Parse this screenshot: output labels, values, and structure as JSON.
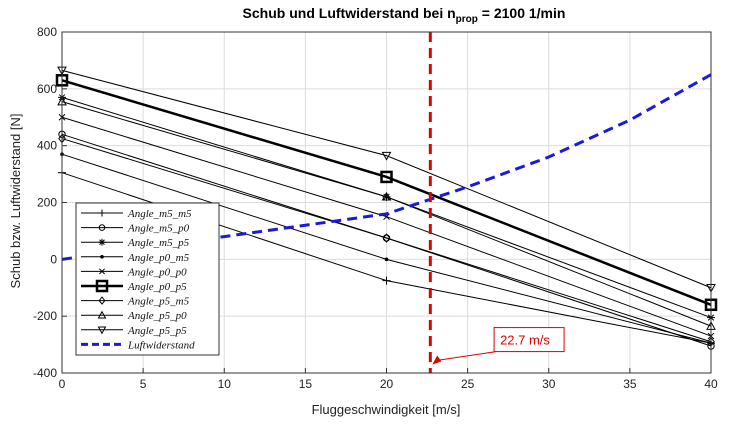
{
  "chart_data": {
    "type": "line",
    "title": "Schub und Luftwiderstand bei n",
    "title_sub": "prop",
    "title_rest": " = 2100 1/min",
    "xlabel": "Fluggeschwindigkeit [m/s]",
    "ylabel": "Schub bzw. Luftwiderstand [N]",
    "xlim": [
      0,
      40
    ],
    "ylim": [
      -400,
      800
    ],
    "xticks": [
      0,
      5,
      10,
      15,
      20,
      25,
      30,
      35,
      40
    ],
    "yticks": [
      -400,
      -200,
      0,
      200,
      400,
      600,
      800
    ],
    "grid": true,
    "legend_position": "lower-left",
    "x": [
      0,
      20,
      40
    ],
    "series": [
      {
        "name": "Angle_m5_m5",
        "values": [
          305,
          -75,
          -295
        ],
        "marker": "plus",
        "color": "#000000"
      },
      {
        "name": "Angle_m5_p0",
        "values": [
          440,
          75,
          -305
        ],
        "marker": "circle",
        "color": "#000000"
      },
      {
        "name": "Angle_m5_p5",
        "values": [
          570,
          220,
          -205
        ],
        "marker": "asterisk",
        "color": "#000000"
      },
      {
        "name": "Angle_p0_m5",
        "values": [
          370,
          0,
          -295
        ],
        "marker": "point",
        "color": "#000000"
      },
      {
        "name": "Angle_p0_p0",
        "values": [
          500,
          150,
          -270
        ],
        "marker": "x",
        "color": "#000000"
      },
      {
        "name": "Angle_p0_p5",
        "values": [
          630,
          290,
          -160
        ],
        "marker": "square",
        "color": "#000000",
        "bold": true
      },
      {
        "name": "Angle_p5_m5",
        "values": [
          425,
          75,
          -290
        ],
        "marker": "diamond",
        "color": "#000000"
      },
      {
        "name": "Angle_p5_p0",
        "values": [
          555,
          220,
          -235
        ],
        "marker": "triangle-up",
        "color": "#000000"
      },
      {
        "name": "Angle_p5_p5",
        "values": [
          665,
          365,
          -100
        ],
        "marker": "triangle-down",
        "color": "#000000"
      }
    ],
    "drag": {
      "name": "Luftwiderstand",
      "color": "#1a1adc",
      "x": [
        0,
        5,
        10,
        15,
        20,
        25,
        30,
        35,
        40
      ],
      "values": [
        0,
        40,
        80,
        120,
        160,
        255,
        360,
        490,
        650
      ]
    },
    "vline": {
      "x": 22.7,
      "color": "#e00000"
    },
    "annotation": {
      "text": "22.7 m/s",
      "x": 22.7,
      "y": -370,
      "label_x": 27,
      "label_y": -300
    }
  }
}
